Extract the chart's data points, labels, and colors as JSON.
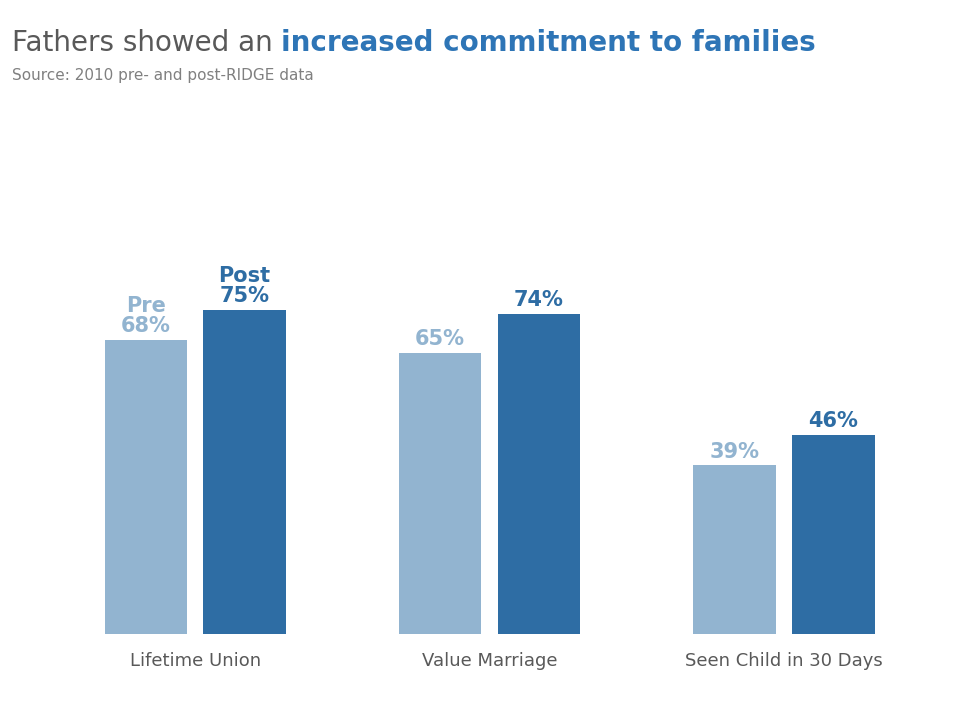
{
  "title_black": "Fathers showed an ",
  "title_blue": "increased commitment to families",
  "source": "Source: 2010 pre- and post-RIDGE data",
  "categories": [
    "Lifetime Union",
    "Value Marriage",
    "Seen Child in 30 Days"
  ],
  "pre_values": [
    68,
    65,
    39
  ],
  "post_values": [
    75,
    74,
    46
  ],
  "pre_color": "#92b4d0",
  "post_color": "#2E6DA4",
  "pre_label": "Pre",
  "post_label": "Post",
  "title_black_color": "#595959",
  "title_blue_color": "#2E75B6",
  "source_color": "#808080",
  "bar_width": 0.28,
  "figsize": [
    9.6,
    7.2
  ],
  "dpi": 100,
  "label_fontsize": 15,
  "category_fontsize": 13,
  "title_fontsize": 20,
  "source_fontsize": 11
}
